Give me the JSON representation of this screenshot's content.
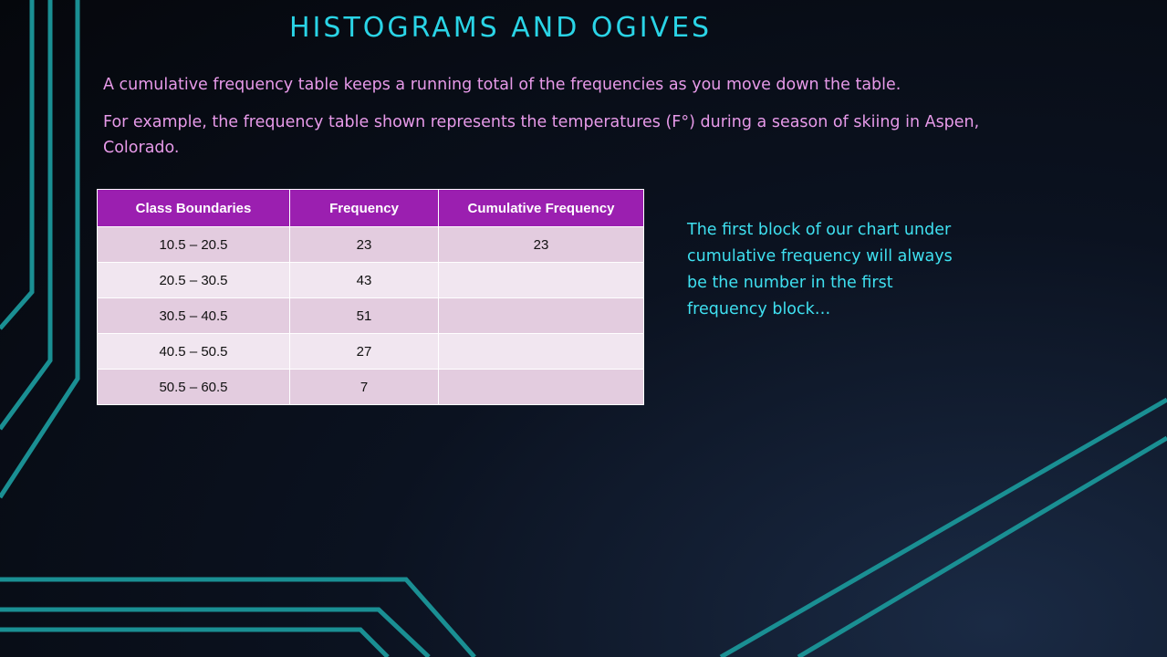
{
  "title": "HISTOGRAMS AND OGIVES",
  "intro": {
    "line1": "A cumulative frequency table keeps a running total of the frequencies as you move down the table.",
    "line2": "For example, the frequency table shown represents the temperatures (F°) during a season of skiing in Aspen, Colorado."
  },
  "table": {
    "headers": [
      "Class Boundaries",
      "Frequency",
      "Cumulative Frequency"
    ],
    "rows": [
      [
        "10.5 – 20.5",
        "23",
        "23"
      ],
      [
        "20.5 – 30.5",
        "43",
        ""
      ],
      [
        "30.5 – 40.5",
        "51",
        ""
      ],
      [
        "40.5 – 50.5",
        "27",
        ""
      ],
      [
        "50.5 – 60.5",
        "7",
        ""
      ]
    ]
  },
  "note": "The first block of our chart under cumulative frequency will always be the number in the first frequency block…",
  "colors": {
    "title": "#2ad4e6",
    "intro_text": "#e79ae9",
    "note_text": "#3fe0f0",
    "table_header": "#9b1fb0",
    "row_dark": "#e3ccdf",
    "row_light": "#f1e6f0",
    "circuit_line": "#1a8f93"
  }
}
